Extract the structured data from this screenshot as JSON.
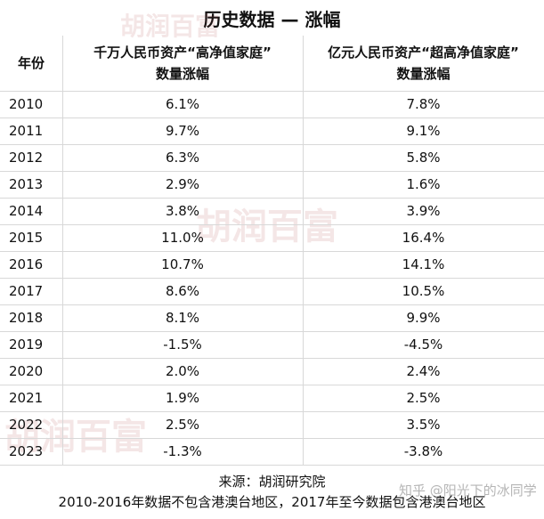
{
  "header": {
    "title": "历史数据 — 涨幅"
  },
  "table": {
    "columns": [
      {
        "lines": [
          "年份"
        ]
      },
      {
        "lines": [
          "千万人民币资产“高净值家庭”",
          "数量涨幅"
        ]
      },
      {
        "lines": [
          "亿元人民币资产“超高净值家庭”",
          "数量涨幅"
        ]
      }
    ],
    "rows": [
      [
        "2010",
        "6.1%",
        "7.8%"
      ],
      [
        "2011",
        "9.7%",
        "9.1%"
      ],
      [
        "2012",
        "6.3%",
        "5.8%"
      ],
      [
        "2013",
        "2.9%",
        "1.6%"
      ],
      [
        "2014",
        "3.8%",
        "3.9%"
      ],
      [
        "2015",
        "11.0%",
        "16.4%"
      ],
      [
        "2016",
        "10.7%",
        "14.1%"
      ],
      [
        "2017",
        "8.6%",
        "10.5%"
      ],
      [
        "2018",
        "8.1%",
        "9.9%"
      ],
      [
        "2019",
        "-1.5%",
        "-4.5%"
      ],
      [
        "2020",
        "2.0%",
        "2.4%"
      ],
      [
        "2021",
        "1.9%",
        "2.5%"
      ],
      [
        "2022",
        "2.5%",
        "3.5%"
      ],
      [
        "2023",
        "-1.3%",
        "-3.8%"
      ]
    ]
  },
  "footer": {
    "source": "来源：胡润研究院",
    "note": "2010-2016年数据不包含港澳台地区，2017年至今数据包含港澳台地区"
  },
  "watermarks": [
    "胡润百富",
    "胡润百富",
    "胡润百富",
    "知乎 @阳光下的冰同学"
  ]
}
